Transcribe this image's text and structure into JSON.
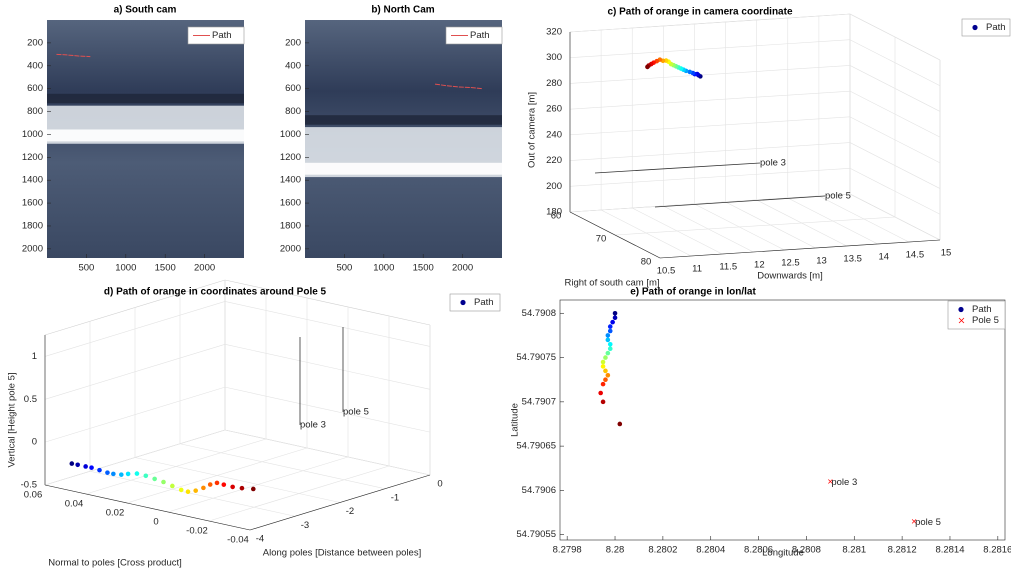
{
  "chart_data": [
    {
      "type": "image",
      "title": "a) South cam",
      "xlim": [
        0,
        2500
      ],
      "ylim": [
        0,
        2080
      ],
      "y_reversed": true,
      "xticks": [
        500,
        1000,
        1500,
        2000
      ],
      "yticks": [
        200,
        400,
        600,
        800,
        1000,
        1200,
        1400,
        1600,
        1800,
        2000
      ],
      "series": [
        {
          "name": "Path",
          "color": "#e05050",
          "x": [
            120,
            250,
            400,
            550
          ],
          "y": [
            300,
            305,
            315,
            320
          ]
        }
      ],
      "legend": "upper right"
    },
    {
      "type": "image",
      "title": "b) North Cam",
      "xlim": [
        0,
        2500
      ],
      "ylim": [
        0,
        2080
      ],
      "y_reversed": true,
      "xticks": [
        500,
        1000,
        1500,
        2000
      ],
      "yticks": [
        200,
        400,
        600,
        800,
        1000,
        1200,
        1400,
        1600,
        1800,
        2000
      ],
      "series": [
        {
          "name": "Path",
          "color": "#e05050",
          "x": [
            1650,
            1800,
            1950,
            2100,
            2250
          ],
          "y": [
            560,
            575,
            585,
            590,
            600
          ]
        }
      ],
      "legend": "upper right"
    },
    {
      "type": "scatter3d",
      "title": "c) Path of orange in camera coordinate",
      "xlabel": "Downwards [m]",
      "ylabel": "Right of south cam [m]",
      "zlabel": "Out of camera [m]",
      "xlim": [
        10.5,
        15
      ],
      "ylim": [
        60,
        80
      ],
      "zlim": [
        180,
        320
      ],
      "xticks": [
        10.5,
        11,
        11.5,
        12,
        12.5,
        13,
        13.5,
        14,
        14.5,
        15
      ],
      "yticks": [
        60,
        70,
        80
      ],
      "zticks": [
        180,
        200,
        220,
        240,
        260,
        280,
        300,
        320
      ],
      "grid": true,
      "legend": "upper right",
      "annotations": [
        "pole 3",
        "pole 5"
      ],
      "series": [
        {
          "name": "Path",
          "color": "#00008f",
          "colormap": "jet",
          "x": [
            12.45,
            12.42,
            12.4,
            12.36,
            12.33,
            12.28,
            12.22,
            12.18,
            12.14,
            12.1,
            12.06,
            12.02,
            11.98,
            11.94,
            11.9,
            11.85,
            11.8,
            11.75,
            11.7,
            11.66,
            11.62,
            11.6
          ],
          "y": [
            62,
            62,
            62,
            62,
            62,
            62,
            62,
            62,
            62,
            62,
            62,
            62,
            62,
            62,
            62,
            62,
            62,
            62,
            62,
            62,
            62,
            62
          ],
          "z": [
            283,
            284,
            285,
            285,
            286,
            287,
            288,
            289,
            290,
            291,
            292,
            293,
            294,
            296,
            297,
            297,
            298,
            297,
            296,
            295,
            294,
            293
          ]
        }
      ]
    },
    {
      "type": "scatter3d",
      "title": "d) Path of orange in coordinates around Pole 5",
      "xlabel": "Normal to poles [Cross product]",
      "ylabel": "Along poles [Distance between poles]",
      "zlabel": "Vertical [Height pole 5]",
      "xlim": [
        -0.04,
        0.06
      ],
      "x_reversed": true,
      "ylim": [
        -4,
        0
      ],
      "zlim": [
        -0.5,
        1.25
      ],
      "xticks": [
        -0.04,
        -0.02,
        0,
        0.02,
        0.04,
        0.06
      ],
      "yticks": [
        -4,
        -3,
        -2,
        -1,
        0
      ],
      "zticks": [
        -0.5,
        0,
        0.5,
        1
      ],
      "grid": true,
      "legend": "upper right",
      "annotations": [
        "pole 3",
        "pole 5"
      ],
      "series": [
        {
          "name": "Path",
          "color": "#00008f",
          "colormap": "jet",
          "x": [
            0.05,
            0.048,
            0.045,
            0.043,
            0.04,
            0.037,
            0.035,
            0.032,
            0.03,
            0.027,
            0.024,
            0.021,
            0.018,
            0.015,
            0.012,
            0.01,
            0.008,
            0.006,
            0.004,
            0.002,
            0.0,
            -0.003,
            -0.006,
            -0.01
          ],
          "y": [
            -3.86,
            -3.82,
            -3.78,
            -3.74,
            -3.7,
            -3.66,
            -3.62,
            -3.58,
            -3.52,
            -3.46,
            -3.4,
            -3.34,
            -3.28,
            -3.22,
            -3.16,
            -3.1,
            -3.02,
            -2.94,
            -2.88,
            -2.82,
            -2.76,
            -2.7,
            -2.63,
            -2.56
          ],
          "z": [
            -0.22,
            -0.23,
            -0.24,
            -0.25,
            -0.27,
            -0.29,
            -0.3,
            -0.3,
            -0.29,
            -0.28,
            -0.3,
            -0.33,
            -0.36,
            -0.4,
            -0.44,
            -0.46,
            -0.45,
            -0.42,
            -0.38,
            -0.36,
            -0.38,
            -0.4,
            -0.41,
            -0.41
          ]
        }
      ]
    },
    {
      "type": "scatter",
      "title": "e) Path of orange in lon/lat",
      "xlabel": "Longitude",
      "ylabel": "Latitude",
      "xlim": [
        8.27977,
        8.28163
      ],
      "ylim": [
        54.790544,
        54.790815
      ],
      "xticks": [
        8.2798,
        8.28,
        8.2802,
        8.2804,
        8.2806,
        8.2808,
        8.281,
        8.2812,
        8.2814,
        8.2816
      ],
      "yticks": [
        54.79055,
        54.7906,
        54.79065,
        54.7907,
        54.79075,
        54.7908
      ],
      "legend": "upper right",
      "annotations": [
        "pole 3",
        "pole 5"
      ],
      "series": [
        {
          "name": "Path",
          "color": "#00008f",
          "colormap": "jet",
          "x": [
            8.28,
            8.28,
            8.27999,
            8.27998,
            8.27998,
            8.27997,
            8.27997,
            8.27998,
            8.27998,
            8.27997,
            8.27996,
            8.27995,
            8.27995,
            8.27996,
            8.27997,
            8.27996,
            8.27995,
            8.27994,
            8.27995,
            8.28002
          ],
          "y": [
            54.7908,
            54.790795,
            54.79079,
            54.790785,
            54.79078,
            54.790775,
            54.79077,
            54.790765,
            54.79076,
            54.790755,
            54.79075,
            54.790745,
            54.79074,
            54.790735,
            54.79073,
            54.790725,
            54.79072,
            54.79071,
            54.7907,
            54.790675
          ]
        },
        {
          "name": "Pole 5",
          "color": "#ff0000",
          "marker": "x",
          "x": [
            8.2809,
            8.28125
          ],
          "y": [
            54.79061,
            54.790565
          ]
        }
      ]
    }
  ]
}
